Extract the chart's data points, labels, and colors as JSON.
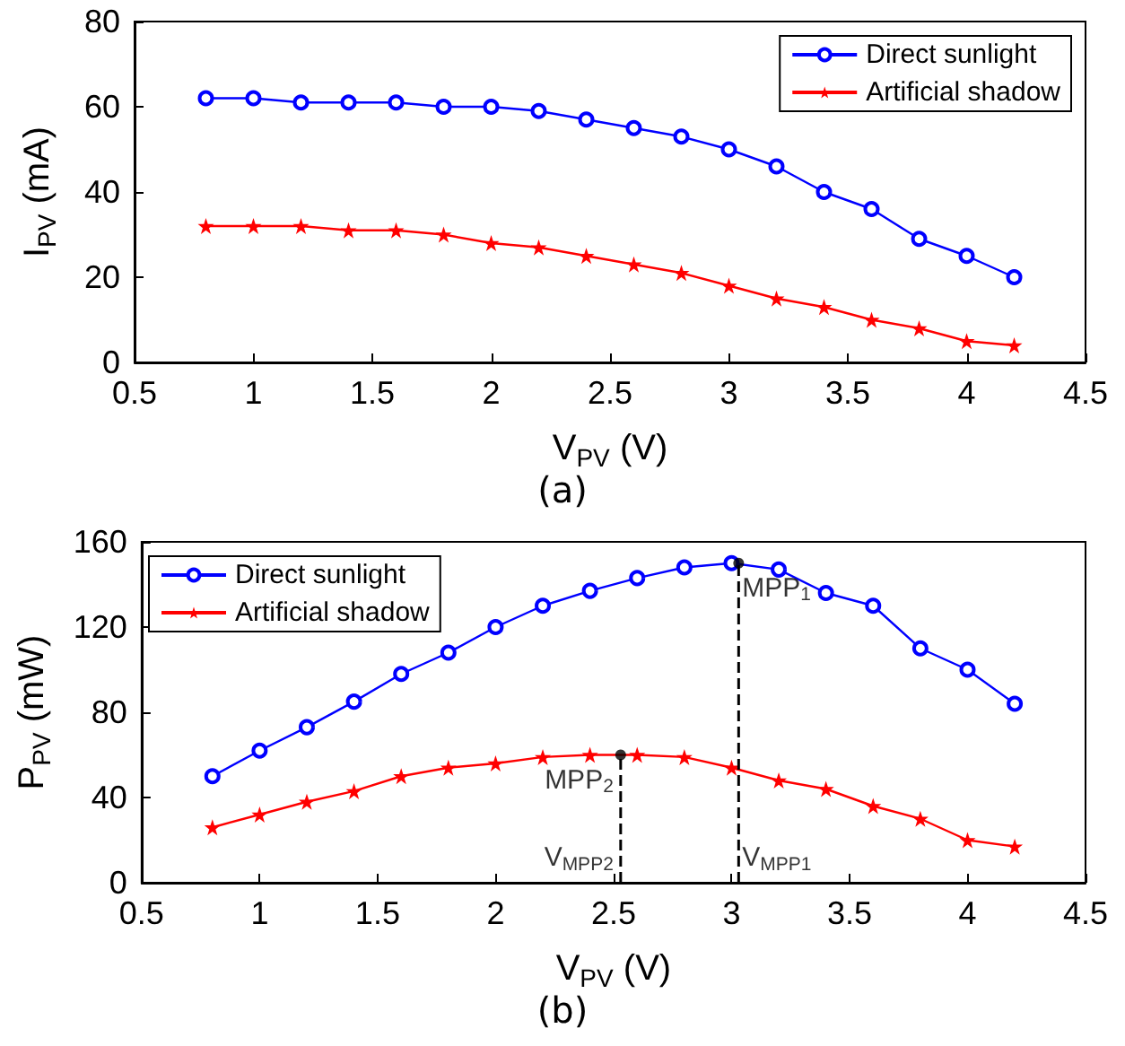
{
  "chart_data": [
    {
      "type": "line",
      "title": "(a)",
      "xlabel": "V$_{PV}$ (V)",
      "ylabel": "I$_{PV}$ (mA)",
      "x": [
        0.8,
        1.0,
        1.2,
        1.4,
        1.6,
        1.8,
        2.0,
        2.2,
        2.4,
        2.6,
        2.8,
        3.0,
        3.2,
        3.4,
        3.6,
        3.8,
        4.0,
        4.2
      ],
      "xlim": [
        0.5,
        4.5
      ],
      "xticks": [
        0.5,
        1,
        1.5,
        2,
        2.5,
        3,
        3.5,
        4,
        4.5
      ],
      "ylim": [
        0,
        80
      ],
      "yticks": [
        0,
        20,
        40,
        60,
        80
      ],
      "grid": false,
      "legend": "top right",
      "series": [
        {
          "name": "Direct sunlight",
          "color": "#0000ff",
          "marker": "circle",
          "values": [
            62,
            62,
            61,
            61,
            61,
            60,
            60,
            59,
            57,
            55,
            53,
            50,
            46,
            40,
            36,
            29,
            25,
            20
          ]
        },
        {
          "name": "Artificial shadow",
          "color": "#ff0000",
          "marker": "star",
          "values": [
            32,
            32,
            32,
            31,
            31,
            30,
            28,
            27,
            25,
            23,
            21,
            18,
            15,
            13,
            10,
            8,
            5,
            4
          ]
        }
      ]
    },
    {
      "type": "line",
      "title": "(b)",
      "xlabel": "V$_{PV}$ (V)",
      "ylabel": "P$_{PV}$ (mW)",
      "x": [
        0.8,
        1.0,
        1.2,
        1.4,
        1.6,
        1.8,
        2.0,
        2.2,
        2.4,
        2.6,
        2.8,
        3.0,
        3.2,
        3.4,
        3.6,
        3.8,
        4.0,
        4.2
      ],
      "xlim": [
        0.5,
        4.5
      ],
      "xticks": [
        0.5,
        1,
        1.5,
        2,
        2.5,
        3,
        3.5,
        4,
        4.5
      ],
      "ylim": [
        0,
        160
      ],
      "yticks": [
        0,
        40,
        80,
        120,
        160
      ],
      "grid": false,
      "legend": "top left",
      "series": [
        {
          "name": "Direct sunlight",
          "color": "#0000ff",
          "marker": "circle",
          "values": [
            50,
            62,
            73,
            85,
            98,
            108,
            120,
            130,
            137,
            143,
            148,
            150,
            147,
            136,
            130,
            110,
            100,
            84
          ]
        },
        {
          "name": "Artificial shadow",
          "color": "#ff0000",
          "marker": "star",
          "values": [
            26,
            32,
            38,
            43,
            50,
            54,
            56,
            59,
            60,
            60,
            59,
            54,
            48,
            44,
            36,
            30,
            20,
            17
          ]
        },
        {
          "type": "scatter",
          "color": "#000000",
          "marker": "circle",
          "x": [
            3.03,
            2.53
          ],
          "values": [
            150,
            60
          ]
        }
      ],
      "ref_lines": [
        {
          "axis": "x",
          "value": 3.03,
          "label": "V$_{MPP1}$",
          "color": "#000000",
          "line_style": "dashed"
        },
        {
          "axis": "x",
          "value": 2.53,
          "label": "V$_{MPP2}$",
          "color": "#000000",
          "line_style": "dashed"
        }
      ],
      "annotations": [
        {
          "text": "MPP$_{1}$",
          "x": 3.03,
          "y": 150
        },
        {
          "text": "MPP$_{2}$",
          "x": 2.53,
          "y": 60
        }
      ]
    }
  ]
}
